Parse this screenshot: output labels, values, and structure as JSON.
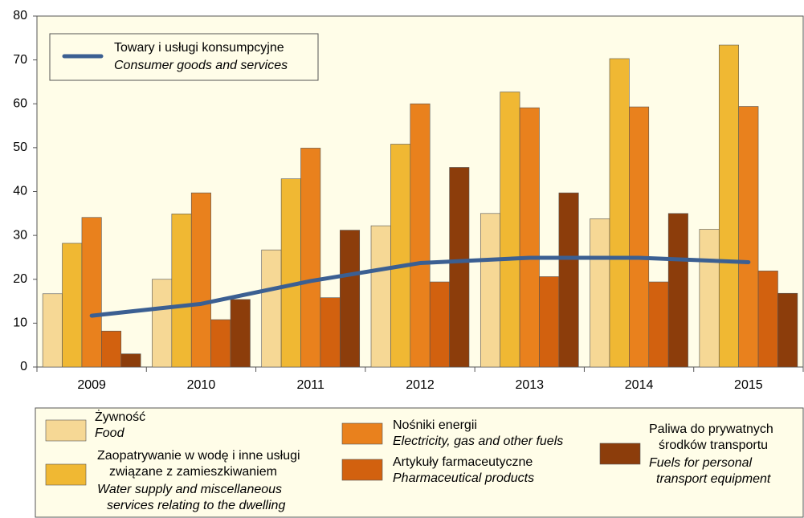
{
  "chart_data": {
    "type": "bar",
    "categories": [
      "2009",
      "2010",
      "2011",
      "2012",
      "2013",
      "2014",
      "2015"
    ],
    "ylim": [
      0,
      80
    ],
    "yticks": [
      0,
      10,
      20,
      30,
      40,
      50,
      60,
      70,
      80
    ],
    "series": [
      {
        "name": [
          "Żywność"
        ],
        "name_en": [
          "Food"
        ],
        "color": "#f6d895",
        "values": [
          16.7,
          20.0,
          26.7,
          32.2,
          35.0,
          33.8,
          31.4
        ]
      },
      {
        "name": [
          "Zaopatrywanie w wodę i inne usługi",
          "związane z zamieszkiwaniem"
        ],
        "name_en": [
          "Water supply and miscellaneous",
          "services relating to the dwelling"
        ],
        "color": "#f0b833",
        "values": [
          28.2,
          34.9,
          42.9,
          50.8,
          62.7,
          70.3,
          73.4
        ]
      },
      {
        "name": [
          "Nośniki energii"
        ],
        "name_en": [
          "Electricity, gas and other fuels"
        ],
        "color": "#e9811d",
        "values": [
          34.1,
          39.7,
          49.9,
          60.0,
          59.1,
          59.3,
          59.4
        ]
      },
      {
        "name": [
          "Artykuły farmaceutyczne"
        ],
        "name_en": [
          "Pharmaceutical products"
        ],
        "color": "#d2610f",
        "values": [
          8.2,
          10.8,
          15.8,
          19.4,
          20.6,
          19.4,
          21.9
        ]
      },
      {
        "name": [
          "Paliwa do prywatnych",
          "środków transportu"
        ],
        "name_en": [
          "Fuels for personal",
          "transport equipment"
        ],
        "color": "#8c3d0b",
        "values": [
          3.0,
          15.4,
          31.2,
          45.5,
          39.7,
          35.0,
          16.8
        ]
      },
      {
        "type": "line",
        "name": [
          "Towary i usługi konsumpcyjne"
        ],
        "name_en": [
          "Consumer goods and services"
        ],
        "color": "#3b5f92",
        "values": [
          11.7,
          14.4,
          19.6,
          23.7,
          24.9,
          24.9,
          23.9
        ]
      }
    ]
  }
}
